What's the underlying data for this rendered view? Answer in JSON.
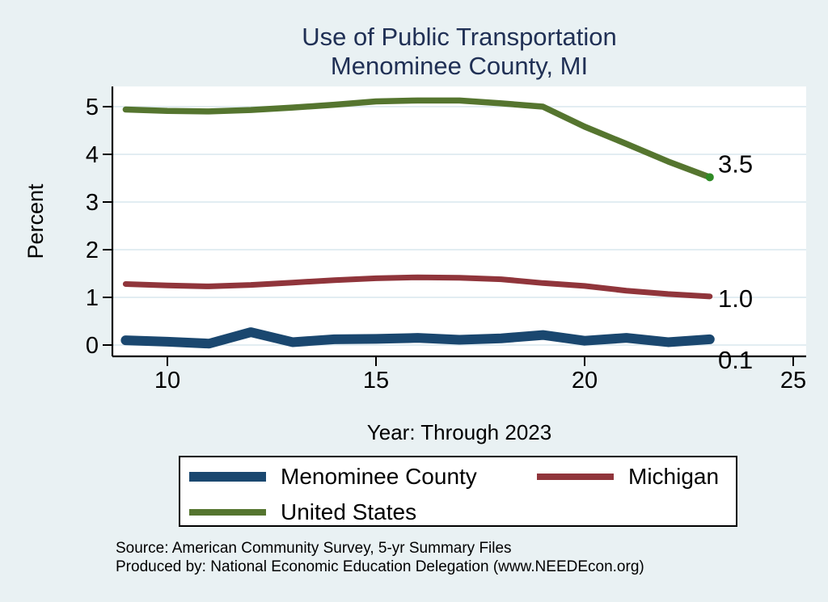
{
  "title": {
    "line1": "Use of Public Transportation",
    "line2": "Menominee County, MI"
  },
  "source": {
    "line1": "Source: American Community Survey, 5-yr Summary Files",
    "line2": "Produced by: National Economic Education Delegation (www.NEEDEcon.org)"
  },
  "colors": {
    "background": "#e9f1f3",
    "plot_background": "#ffffff",
    "gridline": "#e2edf2",
    "axis": "#000000",
    "title_text": "#203055",
    "menominee_line": "#1a476f",
    "michigan_line": "#90353b",
    "us_line": "#55752f",
    "us_end_marker": "#2f8a25"
  },
  "chart_data": {
    "type": "line",
    "title": "Use of Public Transportation Menominee County, MI",
    "xlabel": "Year: Through 2023",
    "ylabel": "Percent",
    "x": [
      9,
      10,
      11,
      12,
      13,
      14,
      15,
      16,
      17,
      18,
      19,
      20,
      21,
      22,
      23
    ],
    "x_ticks": [
      10,
      15,
      20,
      25
    ],
    "y_ticks": [
      0,
      1,
      2,
      3,
      4,
      5
    ],
    "xlim": [
      8.68,
      25.31
    ],
    "ylim": [
      -0.24,
      5.42
    ],
    "grid": "horizontal gridlines only, very light blue on white plot area",
    "legend_position": "bottom",
    "series": [
      {
        "name": "Menominee County",
        "color": "#1a476f",
        "end_label": "0.1",
        "values": [
          0.1,
          0.07,
          0.03,
          0.27,
          0.06,
          0.12,
          0.13,
          0.15,
          0.11,
          0.14,
          0.21,
          0.09,
          0.15,
          0.06,
          0.12
        ]
      },
      {
        "name": "Michigan",
        "color": "#90353b",
        "end_label": "1.0",
        "values": [
          1.28,
          1.25,
          1.23,
          1.26,
          1.31,
          1.36,
          1.4,
          1.42,
          1.41,
          1.38,
          1.3,
          1.24,
          1.14,
          1.07,
          1.02
        ]
      },
      {
        "name": "United States",
        "color": "#55752f",
        "end_label": "3.5",
        "end_marker": true,
        "end_marker_color": "#2f8a25",
        "values": [
          4.94,
          4.91,
          4.9,
          4.93,
          4.98,
          5.04,
          5.11,
          5.13,
          5.13,
          5.07,
          5.0,
          4.58,
          4.22,
          3.85,
          3.52
        ]
      }
    ]
  }
}
